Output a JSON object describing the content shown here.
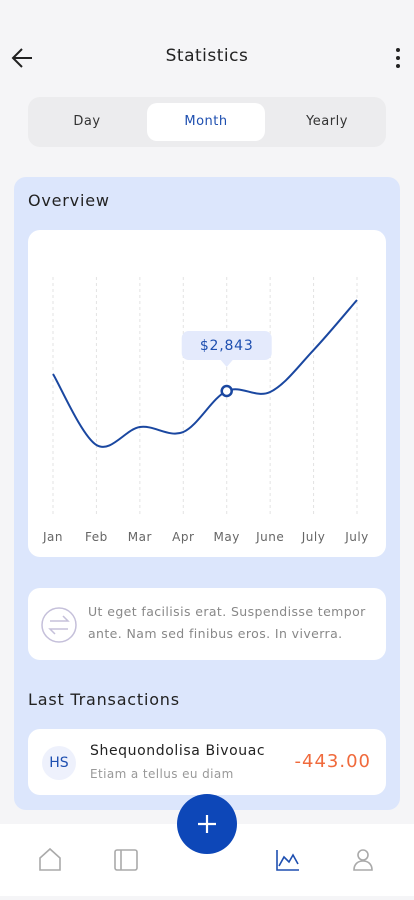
{
  "header": {
    "title": "Statistics"
  },
  "tabs": [
    "Day",
    "Month",
    "Yearly"
  ],
  "overview": {
    "title": "Overview",
    "chart_data": {
      "type": "line",
      "categories": [
        "Jan",
        "Feb",
        "Mar",
        "Apr",
        "May",
        "June",
        "July",
        "July"
      ],
      "values": [
        3233,
        1605,
        2018,
        1903,
        2843,
        2820,
        3783,
        4930
      ],
      "value_labels": [
        null,
        null,
        null,
        null,
        "$2,843",
        null,
        null,
        null
      ],
      "color": "#1a47a0",
      "grid": true
    }
  },
  "note": "Ut eget facilisis erat. Suspendisse tempor ante. Nam sed finibus eros. In viverra.",
  "transactions": {
    "title": "Last Transactions",
    "items": [
      {
        "initials": "HS",
        "name": "Shequondolisa Bivouac",
        "description": "Etiam a tellus eu diam",
        "amount": "-443.00"
      }
    ]
  }
}
